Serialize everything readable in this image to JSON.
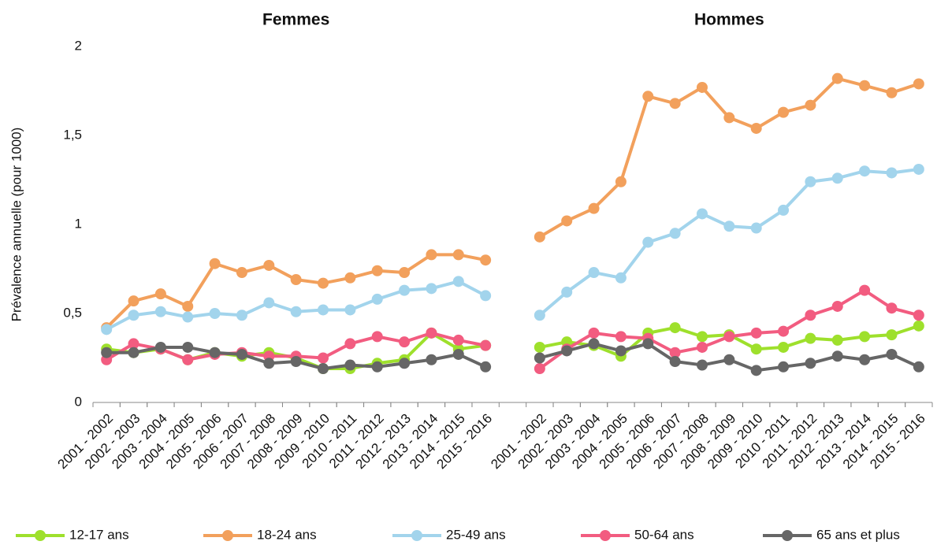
{
  "chart_data": {
    "type": "line",
    "annotations": [
      "Femmes",
      "Hommes"
    ],
    "y_label": "Prévalence annuelle (pour 1000)",
    "categories": [
      "2001 - 2002",
      "2002 - 2003",
      "2003 - 2004",
      "2004 - 2005",
      "2005 - 2006",
      "2006 - 2007",
      "2007 - 2008",
      "2008 - 2009",
      "2009 - 2010",
      "2010 - 2011",
      "2011 - 2012",
      "2012 - 2013",
      "2013 - 2014",
      "2014 - 2015",
      "2015 - 2016",
      null,
      "2001 - 2002",
      "2002 - 2003",
      "2003 - 2004",
      "2004 - 2005",
      "2005 - 2006",
      "2006 - 2007",
      "2007 - 2008",
      "2008 - 2009",
      "2009 - 2010",
      "2010 - 2011",
      "2011 - 2012",
      "2012 - 2013",
      "2013 - 2014",
      "2014 - 2015",
      "2015 - 2016"
    ],
    "ylim": [
      0,
      2
    ],
    "yticks": [
      0,
      {
        "value": 0.5,
        "label": "0,5"
      },
      1,
      {
        "value": 1.5,
        "label": "1,5"
      },
      2
    ],
    "series": [
      {
        "name": "12-17 ans",
        "color": "#9ee02c",
        "values": [
          0.3,
          0.28,
          0.3,
          0.24,
          0.28,
          0.26,
          0.28,
          0.25,
          0.19,
          0.19,
          0.22,
          0.24,
          0.39,
          0.3,
          0.32,
          null,
          0.31,
          0.34,
          0.32,
          0.26,
          0.39,
          0.42,
          0.37,
          0.38,
          0.3,
          0.31,
          0.36,
          0.35,
          0.37,
          0.38,
          0.43
        ]
      },
      {
        "name": "18-24 ans",
        "color": "#f2a05c",
        "values": [
          0.42,
          0.57,
          0.61,
          0.54,
          0.78,
          0.73,
          0.77,
          0.69,
          0.67,
          0.7,
          0.74,
          0.73,
          0.83,
          0.83,
          0.8,
          null,
          0.93,
          1.02,
          1.09,
          1.24,
          1.72,
          1.68,
          1.77,
          1.6,
          1.54,
          1.63,
          1.67,
          1.82,
          1.78,
          1.74,
          1.79
        ]
      },
      {
        "name": "25-49 ans",
        "color": "#a2d4ec",
        "values": [
          0.41,
          0.49,
          0.51,
          0.48,
          0.5,
          0.49,
          0.56,
          0.51,
          0.52,
          0.52,
          0.58,
          0.63,
          0.64,
          0.68,
          0.6,
          null,
          0.49,
          0.62,
          0.73,
          0.7,
          0.9,
          0.95,
          1.06,
          0.99,
          0.98,
          1.08,
          1.24,
          1.26,
          1.3,
          1.29,
          1.31
        ]
      },
      {
        "name": "50-64 ans",
        "color": "#f25c80",
        "values": [
          0.24,
          0.33,
          0.3,
          0.24,
          0.27,
          0.28,
          0.26,
          0.26,
          0.25,
          0.33,
          0.37,
          0.34,
          0.39,
          0.35,
          0.32,
          null,
          0.19,
          0.3,
          0.39,
          0.37,
          0.36,
          0.28,
          0.31,
          0.37,
          0.39,
          0.4,
          0.49,
          0.54,
          0.63,
          0.53,
          0.49
        ]
      },
      {
        "name": "65 ans et plus",
        "color": "#666666",
        "values": [
          0.28,
          0.28,
          0.31,
          0.31,
          0.28,
          0.27,
          0.22,
          0.23,
          0.19,
          0.21,
          0.2,
          0.22,
          0.24,
          0.27,
          0.2,
          null,
          0.25,
          0.29,
          0.33,
          0.29,
          0.33,
          0.23,
          0.21,
          0.24,
          0.18,
          0.2,
          0.22,
          0.26,
          0.24,
          0.27,
          0.2
        ]
      }
    ]
  }
}
